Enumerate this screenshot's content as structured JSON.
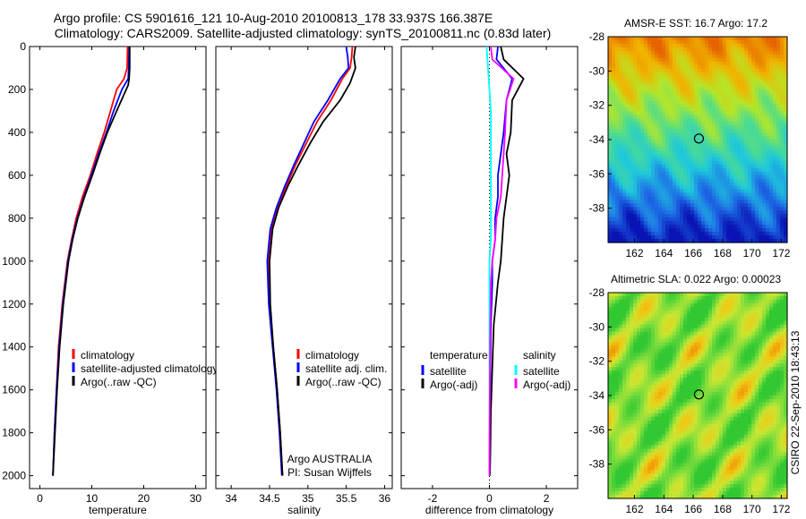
{
  "header": {
    "line1": "Argo profile: CS 5901616_121 10-Aug-2010 20100813_178 33.937S 166.387E",
    "line2": "Climatology: CARS2009. Satellite-adjusted climatology: synTS_20100811.nc (0.83d later)"
  },
  "credit": "CSIRO 22-Sep-2010 18:43:13",
  "chart_data": [
    {
      "id": "temperature",
      "type": "line",
      "xlabel": "temperature",
      "ylabel": "",
      "xlim": [
        -2,
        32
      ],
      "ylim": [
        2060,
        0
      ],
      "xticks": [
        0,
        10,
        20,
        30
      ],
      "yticks": [
        0,
        200,
        400,
        600,
        800,
        1000,
        1200,
        1400,
        1600,
        1800,
        2000
      ],
      "legend": {
        "placement": "lower-center",
        "entries": [
          "climatology",
          "satellite-adjusted climatology",
          "Argo(..raw -QC)"
        ]
      },
      "series": [
        {
          "name": "climatology",
          "color": "#ff0000",
          "x": [
            16.9,
            16.8,
            16.2,
            14.8,
            13.6,
            12.4,
            11.0,
            9.7,
            8.2,
            7.0,
            6.1,
            5.3,
            4.3,
            3.6,
            3.2,
            2.8,
            2.5
          ],
          "y": [
            0,
            100,
            150,
            200,
            300,
            400,
            500,
            600,
            700,
            800,
            900,
            1000,
            1200,
            1400,
            1600,
            1800,
            2000
          ]
        },
        {
          "name": "satellite-adjusted climatology",
          "color": "#0000ff",
          "x": [
            17.2,
            17.1,
            17.0,
            15.8,
            14.2,
            12.8,
            11.3,
            9.9,
            8.5,
            7.2,
            6.2,
            5.4,
            4.4,
            3.7,
            3.2,
            2.8,
            2.5
          ],
          "y": [
            0,
            100,
            150,
            200,
            300,
            400,
            500,
            600,
            700,
            800,
            900,
            1000,
            1200,
            1400,
            1600,
            1800,
            2000
          ]
        },
        {
          "name": "Argo(..raw -QC)",
          "color": "#000000",
          "x": [
            17.3,
            17.3,
            17.2,
            17.0,
            14.8,
            13.0,
            11.5,
            10.1,
            8.6,
            7.3,
            6.3,
            5.5,
            4.5,
            3.8,
            3.3,
            2.9,
            2.5
          ],
          "y": [
            0,
            100,
            150,
            180,
            300,
            400,
            500,
            600,
            700,
            800,
            900,
            1000,
            1200,
            1400,
            1600,
            1800,
            2000
          ]
        }
      ]
    },
    {
      "id": "salinity",
      "type": "line",
      "xlabel": "salinity",
      "ylabel": "",
      "xlim": [
        33.8,
        36.1
      ],
      "ylim": [
        2060,
        0
      ],
      "xticks": [
        34,
        34.5,
        35,
        35.5,
        36
      ],
      "legend": {
        "placement": "lower-center",
        "entries": [
          "climatology",
          "satellite adj. clim.",
          "Argo(..raw -QC)"
        ]
      },
      "annotation": [
        "Argo AUSTRALIA",
        "PI: Susan Wijffels"
      ],
      "series": [
        {
          "name": "climatology",
          "color": "#ff0000",
          "x": [
            35.58,
            35.57,
            35.55,
            35.45,
            35.3,
            35.12,
            34.98,
            34.84,
            34.72,
            34.6,
            34.52,
            34.48,
            34.5,
            34.55,
            34.6,
            34.64,
            34.67
          ],
          "y": [
            0,
            50,
            100,
            150,
            250,
            350,
            450,
            550,
            650,
            750,
            850,
            1000,
            1200,
            1400,
            1600,
            1800,
            2000
          ]
        },
        {
          "name": "satellite adj. clim.",
          "color": "#0000ff",
          "x": [
            35.5,
            35.52,
            35.53,
            35.42,
            35.26,
            35.08,
            34.95,
            34.82,
            34.7,
            34.59,
            34.51,
            34.47,
            34.49,
            34.54,
            34.59,
            34.63,
            34.66
          ],
          "y": [
            0,
            50,
            100,
            150,
            250,
            350,
            450,
            550,
            650,
            750,
            850,
            1000,
            1200,
            1400,
            1600,
            1800,
            2000
          ]
        },
        {
          "name": "Argo(..raw -QC)",
          "color": "#000000",
          "x": [
            35.62,
            35.6,
            35.62,
            35.55,
            35.42,
            35.2,
            35.03,
            34.88,
            34.74,
            34.62,
            34.54,
            34.5,
            34.51,
            34.55,
            34.6,
            34.64,
            34.67
          ],
          "y": [
            0,
            50,
            100,
            170,
            250,
            350,
            450,
            550,
            650,
            750,
            850,
            1000,
            1200,
            1400,
            1600,
            1800,
            2000
          ]
        }
      ]
    },
    {
      "id": "difference",
      "type": "line",
      "xlabel": "difference from climatology",
      "ylabel": "",
      "xlim": [
        -3.1,
        3.1
      ],
      "ylim": [
        2060,
        0
      ],
      "xticks": [
        -2,
        0,
        2
      ],
      "legend": {
        "placement": "lower-center",
        "columns": [
          {
            "heading": "temperature",
            "entries": [
              "satellite",
              "Argo(-adj)"
            ]
          },
          {
            "heading": "salinity",
            "entries": [
              "satellite",
              "Argo(-adj)"
            ]
          }
        ]
      },
      "series": [
        {
          "name": "temperature satellite",
          "color": "#0000ff",
          "x": [
            0.3,
            0.25,
            0.8,
            0.6,
            0.5,
            0.4,
            0.3,
            0.3,
            0.2,
            0.2,
            0.1,
            0.1,
            0.05,
            0.03,
            0.02,
            0.02,
            0.01
          ],
          "y": [
            0,
            60,
            150,
            250,
            400,
            500,
            600,
            700,
            800,
            900,
            1000,
            1100,
            1300,
            1500,
            1700,
            1900,
            2000
          ]
        },
        {
          "name": "temperature Argo(-adj)",
          "color": "#000000",
          "x": [
            0.4,
            0.5,
            1.2,
            0.8,
            0.75,
            0.6,
            0.7,
            0.6,
            0.5,
            0.45,
            0.4,
            0.3,
            0.15,
            0.1,
            0.05,
            0.03,
            0.02
          ],
          "y": [
            0,
            60,
            150,
            250,
            400,
            500,
            600,
            700,
            800,
            900,
            1000,
            1100,
            1300,
            1500,
            1700,
            1900,
            2000
          ]
        },
        {
          "name": "salinity satellite",
          "color": "#00ffff",
          "x": [
            -0.1,
            -0.05,
            0.0,
            0.05,
            0.05,
            0.05,
            0.05,
            0.05,
            0.05,
            0.05,
            0.0,
            0.0,
            0.0,
            0.0,
            0.0,
            0.0,
            0.0
          ],
          "y": [
            0,
            100,
            200,
            300,
            400,
            500,
            600,
            700,
            800,
            900,
            1000,
            1100,
            1300,
            1500,
            1700,
            1900,
            2000
          ]
        },
        {
          "name": "salinity Argo(-adj)",
          "color": "#ff00ff",
          "x": [
            0.05,
            0.1,
            0.85,
            0.6,
            0.55,
            0.5,
            0.45,
            0.4,
            0.25,
            0.2,
            0.1,
            0.05,
            0.03,
            0.02,
            0.01,
            0.0,
            0.0
          ],
          "y": [
            0,
            60,
            150,
            250,
            400,
            500,
            600,
            700,
            800,
            900,
            1000,
            1100,
            1300,
            1500,
            1700,
            1900,
            2000
          ]
        }
      ]
    },
    {
      "id": "sst-map",
      "type": "heatmap",
      "title": "AMSR-E SST: 16.7  Argo: 17.2",
      "xlim": [
        160.2,
        172.4
      ],
      "ylim": [
        -40,
        -28
      ],
      "xticks": [
        162,
        164,
        166,
        168,
        170,
        172
      ],
      "yticks": [
        -28,
        -30,
        -32,
        -34,
        -36,
        -38
      ],
      "colormap": [
        "#0a14b4",
        "#1e6ee6",
        "#1ec8dc",
        "#50dc8c",
        "#b4e628",
        "#f0b400",
        "#e66400"
      ],
      "profile_location": {
        "lon": 166.387,
        "lat": -33.937
      }
    },
    {
      "id": "sla-map",
      "type": "heatmap",
      "title": "Altimetric SLA: 0.022  Argo: 0.00023",
      "xlim": [
        160.2,
        172.4
      ],
      "ylim": [
        -40,
        -28
      ],
      "xticks": [
        162,
        164,
        166,
        168,
        170,
        172
      ],
      "yticks": [
        -28,
        -30,
        -32,
        -34,
        -36,
        -38
      ],
      "colormap": [
        "#32c832",
        "#78dc3c",
        "#c8e632",
        "#f0c814",
        "#f07800"
      ],
      "profile_location": {
        "lon": 166.387,
        "lat": -33.937
      }
    }
  ]
}
